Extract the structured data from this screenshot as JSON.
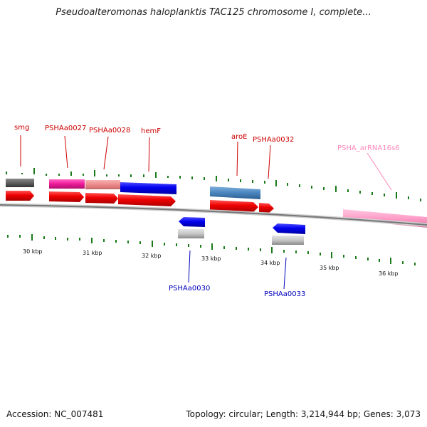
{
  "title": "Pseudoalteromonas haloplanktis TAC125 chromosome I, complete...",
  "footer": {
    "accession": "Accession: NC_007481",
    "topology": "Topology: circular; Length: 3,214,944 bp; Genes: 3,073"
  },
  "colors": {
    "backbone": "#8a8a8a",
    "tick_marks": "#1a7a1a",
    "forward_label": "#cc0000",
    "reverse_label": "#0000bb",
    "rna_label": "#ff88bb"
  },
  "scale": {
    "unit": "kbp",
    "labels": [
      "30 kbp",
      "31 kbp",
      "32 kbp",
      "33 kbp",
      "34 kbp",
      "35 kbp",
      "36 kbp"
    ]
  },
  "genes": {
    "smg": "smg",
    "pshaa0027": "PSHAa0027",
    "pshaa0028": "PSHAa0028",
    "hemf": "hemF",
    "aroe": "aroE",
    "pshaa0032": "PSHAa0032",
    "psha_arrna16s6": "PSHA_arRNA16s6",
    "pshaa0030": "PSHAa0030",
    "pshaa0033": "PSHAa0033"
  }
}
